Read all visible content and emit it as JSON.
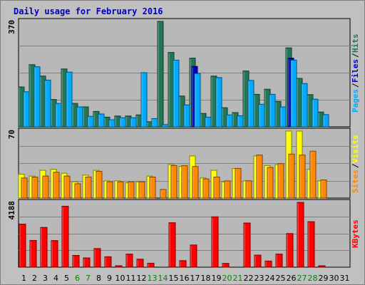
{
  "chart_data": [
    {
      "type": "bar",
      "title": "Daily usage for February 2016",
      "categories": [
        "1",
        "2",
        "3",
        "4",
        "5",
        "6",
        "7",
        "8",
        "9",
        "10",
        "11",
        "12",
        "13",
        "14",
        "15",
        "16",
        "17",
        "18",
        "19",
        "20",
        "21",
        "22",
        "23",
        "24",
        "25",
        "26",
        "27",
        "28",
        "29",
        "30",
        "31"
      ],
      "weekend_days": [
        "6",
        "7",
        "13",
        "14",
        "20",
        "21",
        "27",
        "28"
      ],
      "ymax_label": "370",
      "ymax": 370,
      "series": [
        {
          "name": "Hits",
          "color": "#227755",
          "values": [
            140,
            218,
            178,
            96,
            203,
            82,
            70,
            54,
            34,
            38,
            38,
            42,
            18,
            370,
            261,
            108,
            241,
            47,
            178,
            67,
            50,
            196,
            114,
            132,
            89,
            277,
            170,
            113,
            52,
            0,
            0
          ]
        },
        {
          "name": "Files",
          "color": "#0000c0",
          "values": [
            0,
            0,
            0,
            0,
            0,
            0,
            0,
            0,
            0,
            0,
            0,
            0,
            0,
            0,
            0,
            0,
            212,
            0,
            0,
            0,
            0,
            0,
            0,
            0,
            0,
            241,
            0,
            0,
            0,
            0,
            0
          ]
        },
        {
          "name": "Pages",
          "color": "#00aaff",
          "values": [
            123,
            211,
            164,
            82,
            192,
            70,
            37,
            45,
            25,
            32,
            32,
            190,
            29,
            8,
            234,
            77,
            187,
            34,
            173,
            42,
            39,
            163,
            79,
            114,
            70,
            234,
            152,
            97,
            43,
            0,
            0
          ]
        }
      ],
      "axis_labels": [
        "Pages",
        "/",
        "Files",
        "/",
        "Hits"
      ],
      "axis_label_colors": [
        "#00aaff",
        "#000000",
        "#0000c0",
        "#000000",
        "#227755"
      ]
    },
    {
      "type": "bar",
      "ymax_label": "70",
      "ymax": 70,
      "series": [
        {
          "name": "Visits",
          "color": "#ffff00",
          "values": [
            25,
            23,
            29,
            30,
            26,
            17,
            24,
            29,
            18,
            18,
            16,
            17,
            23,
            0,
            35,
            33,
            44,
            21,
            29,
            17,
            31,
            18,
            44,
            34,
            35,
            70,
            70,
            30,
            18,
            0,
            0
          ]
        },
        {
          "name": "Sites",
          "color": "#ff8800",
          "values": [
            21,
            22,
            23,
            27,
            23,
            15,
            22,
            28,
            17,
            17,
            17,
            17,
            22,
            9,
            34,
            34,
            33,
            20,
            22,
            18,
            31,
            18,
            45,
            32,
            36,
            46,
            45,
            49,
            19,
            0,
            0
          ]
        }
      ],
      "axis_labels": [
        "Sites",
        "/",
        "Visits"
      ],
      "axis_label_colors": [
        "#ff8800",
        "#000000",
        "#ffff00"
      ]
    },
    {
      "type": "bar",
      "ymax_label": "4188",
      "ymax": 4188,
      "series": [
        {
          "name": "KBytes",
          "color": "#ff0000",
          "values": [
            2782,
            1729,
            2569,
            1720,
            3937,
            760,
            601,
            1204,
            674,
            58,
            846,
            517,
            256,
            0,
            2872,
            424,
            1434,
            0,
            3255,
            246,
            0,
            2854,
            780,
            397,
            848,
            2172,
            4188,
            2941,
            93,
            0,
            0
          ]
        }
      ],
      "axis_labels": [
        "KBytes"
      ],
      "axis_label_colors": [
        "#ff0000"
      ]
    }
  ]
}
